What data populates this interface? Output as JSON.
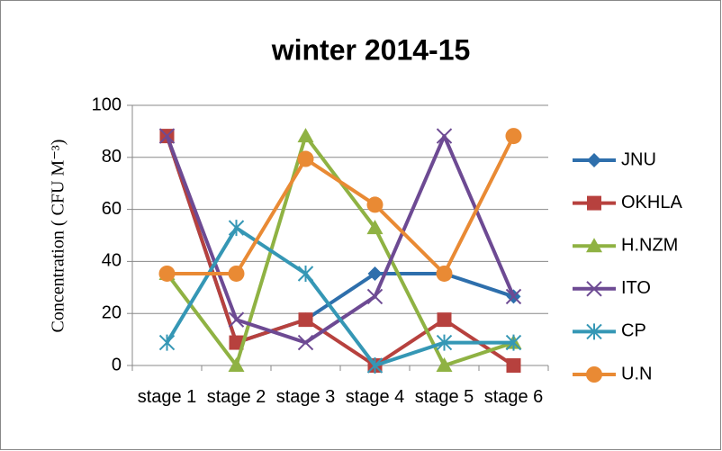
{
  "chart_data": {
    "type": "line",
    "title": "winter 2014-15",
    "y_label": "Concentration ( CFU M⁻³)",
    "categories": [
      "stage 1",
      "stage 2",
      "stage 3",
      "stage 4",
      "stage 5",
      "stage 6"
    ],
    "series": [
      {
        "name": "JNU",
        "color": "#2e6fac",
        "marker": "diamond",
        "values": [
          88.2,
          8.8,
          17.6,
          35.3,
          35.3,
          26.5
        ]
      },
      {
        "name": "OKHLA",
        "color": "#b7413e",
        "marker": "square",
        "values": [
          88.2,
          8.8,
          17.6,
          0,
          17.6,
          0
        ]
      },
      {
        "name": "H.NZM",
        "color": "#8fb243",
        "marker": "triangle",
        "values": [
          35.3,
          0,
          88.2,
          52.9,
          0,
          8.8
        ]
      },
      {
        "name": "ITO",
        "color": "#6d4a93",
        "marker": "x",
        "values": [
          88.2,
          17.6,
          8.8,
          26.5,
          88.2,
          26.5
        ]
      },
      {
        "name": "CP",
        "color": "#3597b5",
        "marker": "star",
        "values": [
          8.8,
          52.9,
          35.3,
          0,
          8.8,
          8.8
        ]
      },
      {
        "name": "U.N",
        "color": "#e98a34",
        "marker": "circle",
        "values": [
          35.3,
          35.3,
          79.4,
          61.8,
          35.3,
          88.2
        ]
      }
    ],
    "ylim": [
      0,
      100
    ],
    "yticks": [
      0,
      20,
      40,
      60,
      80,
      100
    ],
    "grid": true,
    "legend": "right"
  }
}
